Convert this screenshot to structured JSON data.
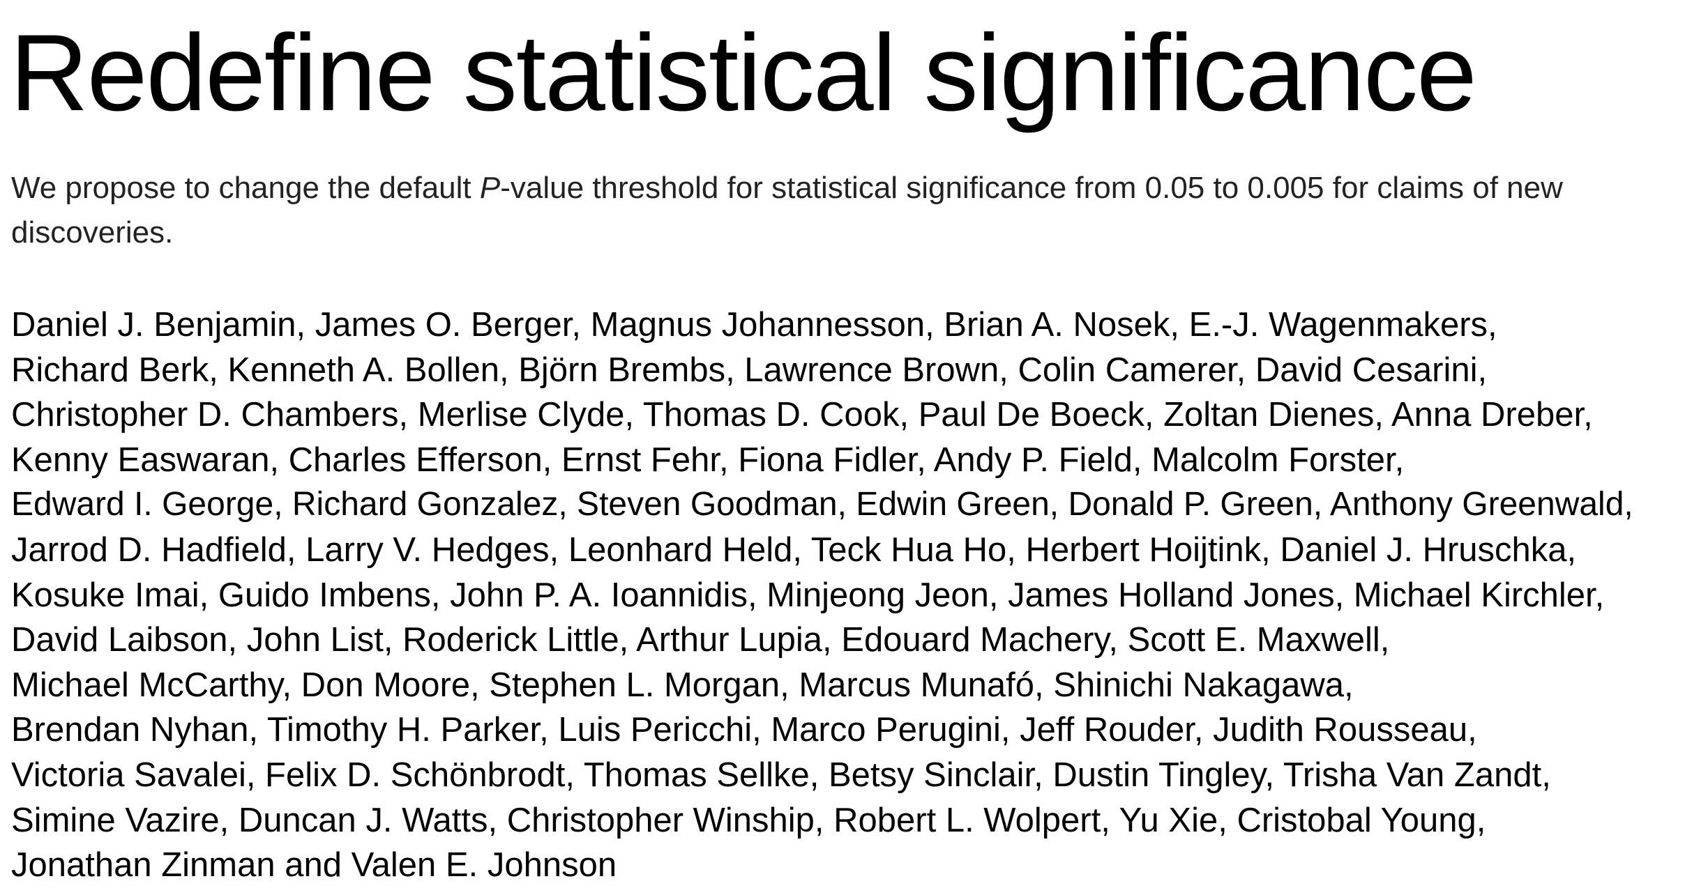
{
  "title": "Redefine statistical significance",
  "abstract": {
    "before": "We propose to change the default ",
    "italic": "P",
    "after": "-value threshold for statistical significance from 0.05 to 0.005 for claims of new discoveries."
  },
  "authors": {
    "lines": [
      "Daniel J. Benjamin, James O. Berger, Magnus Johannesson, Brian A. Nosek, E.-J. Wagenmakers,",
      "Richard Berk, Kenneth A. Bollen, Björn Brembs, Lawrence Brown, Colin Camerer, David Cesarini,",
      "Christopher D. Chambers, Merlise Clyde, Thomas D. Cook, Paul De Boeck, Zoltan Dienes, Anna Dreber,",
      "Kenny Easwaran, Charles Efferson, Ernst Fehr, Fiona Fidler, Andy P. Field, Malcolm Forster,",
      "Edward I. George, Richard Gonzalez, Steven Goodman, Edwin Green, Donald P. Green, Anthony Greenwald,",
      "Jarrod D. Hadfield, Larry V. Hedges, Leonhard Held, Teck Hua Ho, Herbert Hoijtink, Daniel J. Hruschka,",
      "Kosuke Imai, Guido Imbens, John P. A. Ioannidis, Minjeong Jeon, James Holland Jones, Michael Kirchler,",
      "David Laibson, John List, Roderick Little, Arthur Lupia, Edouard Machery, Scott E. Maxwell,",
      "Michael McCarthy, Don Moore, Stephen L. Morgan, Marcus Munafó, Shinichi Nakagawa,",
      "Brendan Nyhan, Timothy H. Parker, Luis Pericchi, Marco Perugini, Jeff Rouder, Judith Rousseau,",
      "Victoria Savalei, Felix D. Schönbrodt, Thomas Sellke, Betsy Sinclair, Dustin Tingley, Trisha Van Zandt,",
      "Simine Vazire, Duncan J. Watts, Christopher Winship, Robert L. Wolpert, Yu Xie, Cristobal Young,",
      "Jonathan Zinman and Valen E. Johnson"
    ]
  }
}
